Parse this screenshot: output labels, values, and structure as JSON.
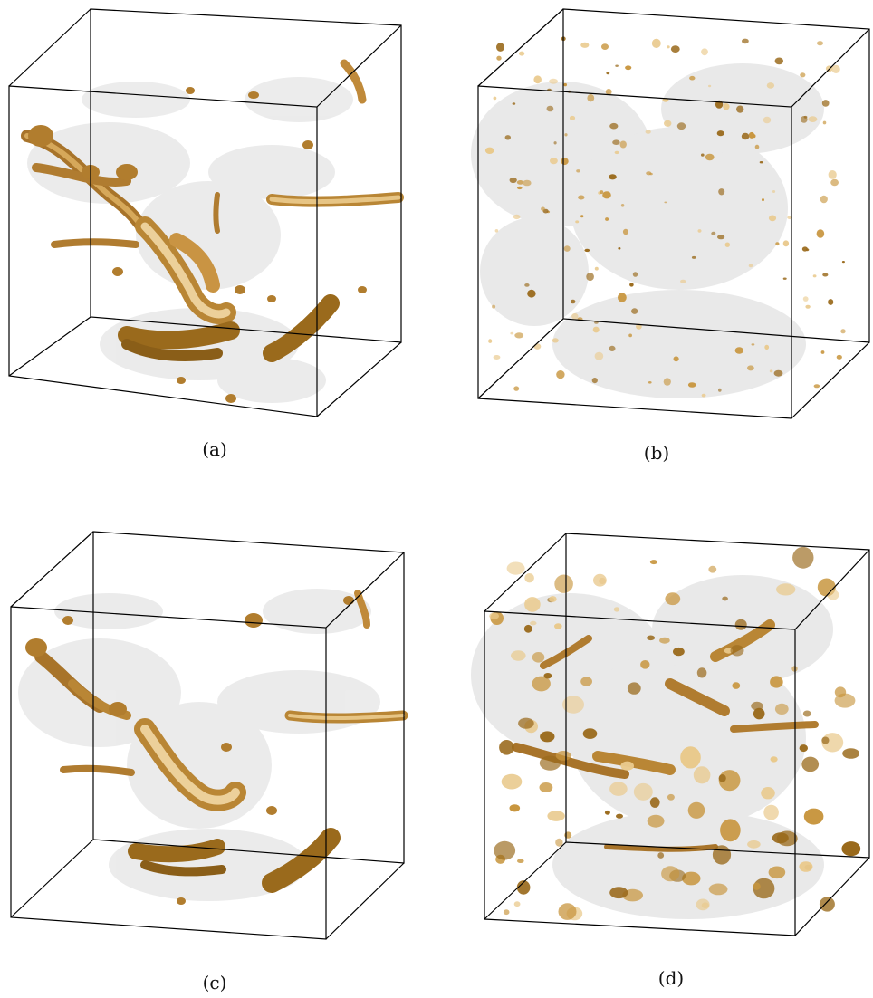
{
  "panels": [
    {
      "id": "a",
      "caption": "(a)"
    },
    {
      "id": "b",
      "caption": "(b)"
    },
    {
      "id": "c",
      "caption": "(c)"
    },
    {
      "id": "d",
      "caption": "(d)"
    }
  ],
  "colors": {
    "structure_dark": "#9a6a1c",
    "structure_mid": "#c8963f",
    "structure_light": "#e9c98c",
    "haze": "#c9c9c9",
    "box_line": "#000000"
  }
}
